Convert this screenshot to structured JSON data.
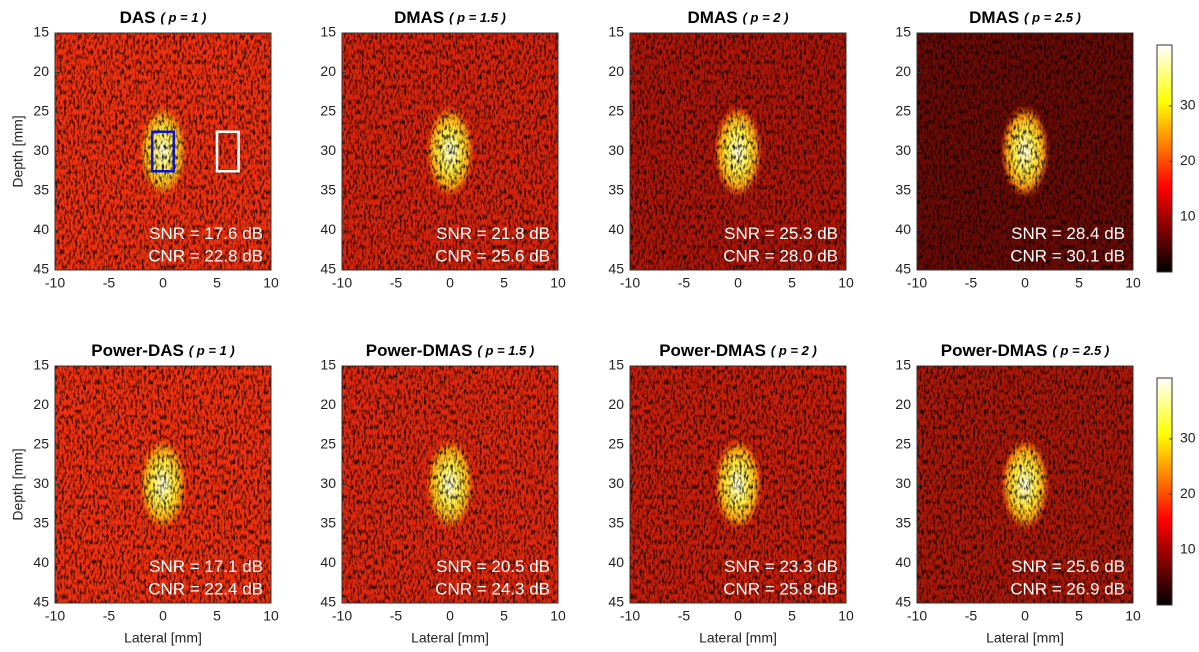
{
  "chart_data": [
    {
      "type": "image",
      "title": "DAS",
      "title_suffix": "( p = 1 )",
      "ylabel": "Depth [mm]",
      "background_color": "#f0300f",
      "xlim": [
        -10,
        10
      ],
      "xticks": [
        -10,
        -5,
        0,
        5,
        10
      ],
      "ylim": [
        15,
        45
      ],
      "yticks": [
        15,
        20,
        25,
        30,
        35,
        40,
        45
      ],
      "y_reversed": true,
      "annotations": [
        "SNR = 17.6 dB",
        "CNR = 22.8 dB"
      ],
      "rois": [
        {
          "color": "#0a14d0",
          "x": [
            -1,
            1
          ],
          "y": [
            27.5,
            32.5
          ]
        },
        {
          "color": "#ffffff",
          "x": [
            5,
            7
          ],
          "y": [
            27.5,
            32.5
          ]
        }
      ]
    },
    {
      "type": "image",
      "title": "DMAS",
      "title_suffix": "( p = 1.5 )",
      "background_color": "#d8240c",
      "xlim": [
        -10,
        10
      ],
      "xticks": [
        -10,
        -5,
        0,
        5,
        10
      ],
      "ylim": [
        15,
        45
      ],
      "yticks": [
        15,
        20,
        25,
        30,
        35,
        40,
        45
      ],
      "y_reversed": true,
      "annotations": [
        "SNR = 21.8 dB",
        "CNR = 25.6 dB"
      ]
    },
    {
      "type": "image",
      "title": "DMAS",
      "title_suffix": "( p = 2 )",
      "background_color": "#b01608",
      "xlim": [
        -10,
        10
      ],
      "xticks": [
        -10,
        -5,
        0,
        5,
        10
      ],
      "ylim": [
        15,
        45
      ],
      "yticks": [
        15,
        20,
        25,
        30,
        35,
        40,
        45
      ],
      "y_reversed": true,
      "annotations": [
        "SNR = 25.3 dB",
        "CNR = 28.0 dB"
      ]
    },
    {
      "type": "image",
      "title": "DMAS",
      "title_suffix": "( p = 2.5 )",
      "background_color": "#6a0a04",
      "xlim": [
        -10,
        10
      ],
      "xticks": [
        -10,
        -5,
        0,
        5,
        10
      ],
      "ylim": [
        15,
        45
      ],
      "yticks": [
        15,
        20,
        25,
        30,
        35,
        40,
        45
      ],
      "y_reversed": true,
      "annotations": [
        "SNR = 28.4 dB",
        "CNR = 30.1 dB"
      ],
      "colorbar": {
        "colormap": "hot",
        "clim": [
          0,
          41
        ],
        "ticks": [
          10,
          20,
          30
        ]
      }
    },
    {
      "type": "image",
      "title": "Power-DAS",
      "title_suffix": "( p = 1 )",
      "xlabel": "Lateral [mm]",
      "ylabel": "Depth [mm]",
      "background_color": "#f0300f",
      "xlim": [
        -10,
        10
      ],
      "xticks": [
        -10,
        -5,
        0,
        5,
        10
      ],
      "ylim": [
        15,
        45
      ],
      "yticks": [
        15,
        20,
        25,
        30,
        35,
        40,
        45
      ],
      "y_reversed": true,
      "annotations": [
        "SNR = 17.1 dB",
        "CNR = 22.4 dB"
      ]
    },
    {
      "type": "image",
      "title": "Power-DMAS",
      "title_suffix": "( p = 1.5 )",
      "xlabel": "Lateral [mm]",
      "background_color": "#e0280e",
      "xlim": [
        -10,
        10
      ],
      "xticks": [
        -10,
        -5,
        0,
        5,
        10
      ],
      "ylim": [
        15,
        45
      ],
      "yticks": [
        15,
        20,
        25,
        30,
        35,
        40,
        45
      ],
      "y_reversed": true,
      "annotations": [
        "SNR = 20.5 dB",
        "CNR = 24.3 dB"
      ]
    },
    {
      "type": "image",
      "title": "Power-DMAS",
      "title_suffix": "( p = 2 )",
      "xlabel": "Lateral [mm]",
      "background_color": "#c81e0a",
      "xlim": [
        -10,
        10
      ],
      "xticks": [
        -10,
        -5,
        0,
        5,
        10
      ],
      "ylim": [
        15,
        45
      ],
      "yticks": [
        15,
        20,
        25,
        30,
        35,
        40,
        45
      ],
      "y_reversed": true,
      "annotations": [
        "SNR = 23.3 dB",
        "CNR = 25.8 dB"
      ]
    },
    {
      "type": "image",
      "title": "Power-DMAS",
      "title_suffix": "( p = 2.5 )",
      "xlabel": "Lateral [mm]",
      "background_color": "#ac1808",
      "xlim": [
        -10,
        10
      ],
      "xticks": [
        -10,
        -5,
        0,
        5,
        10
      ],
      "ylim": [
        15,
        45
      ],
      "yticks": [
        15,
        20,
        25,
        30,
        35,
        40,
        45
      ],
      "y_reversed": true,
      "annotations": [
        "SNR = 25.6 dB",
        "CNR = 26.9 dB"
      ],
      "colorbar": {
        "colormap": "hot",
        "clim": [
          0,
          41
        ],
        "ticks": [
          10,
          20,
          30
        ]
      }
    }
  ]
}
